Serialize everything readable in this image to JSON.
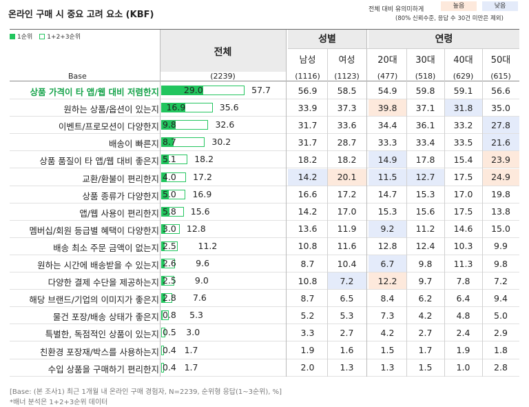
{
  "title": "온라인 구매 시 중요 고려 요소 (KBF)",
  "significance": {
    "label": "전체 대비 유의미하게",
    "high": "높음",
    "low": "낮음",
    "note": "(80% 신뢰수준, 응답 수 30건 미만은 제외)",
    "colors": {
      "high": "#fde9dc",
      "low": "#e4ebfa"
    }
  },
  "legend": {
    "rank1": "1순위",
    "rank123": "1+2+3순위"
  },
  "headers": {
    "total": "전체",
    "gender": "성별",
    "age": "연령",
    "columns": [
      "남성",
      "여성",
      "20대",
      "30대",
      "40대",
      "50대"
    ]
  },
  "base": {
    "label": "Base",
    "total": "(2239)",
    "cols": [
      "(1116)",
      "(1123)",
      "(477)",
      "(518)",
      "(629)",
      "(615)"
    ]
  },
  "chart_data": {
    "type": "bar",
    "title": "온라인 구매 시 중요 고려 요소 (KBF)",
    "series": [
      {
        "name": "1순위"
      },
      {
        "name": "1+2+3순위"
      }
    ],
    "rows": [
      {
        "label": "상품 가격이 타 앱/웹 대비 저렴한지",
        "rank1": 29.0,
        "rank123": 57.7,
        "cols": [
          56.9,
          58.5,
          54.9,
          59.8,
          59.1,
          56.6
        ],
        "sig": [
          "",
          "",
          "",
          "",
          "",
          ""
        ],
        "highlight": true
      },
      {
        "label": "원하는 상품/옵션이 있는지",
        "rank1": 16.9,
        "rank123": 35.6,
        "cols": [
          33.9,
          37.3,
          39.8,
          37.1,
          31.8,
          35.0
        ],
        "sig": [
          "",
          "",
          "hi",
          "",
          "lo",
          ""
        ]
      },
      {
        "label": "이벤트/프로모션이 다양한지",
        "rank1": 9.8,
        "rank123": 32.6,
        "cols": [
          31.7,
          33.6,
          34.4,
          36.1,
          33.2,
          27.8
        ],
        "sig": [
          "",
          "",
          "",
          "",
          "",
          "lo"
        ]
      },
      {
        "label": "배송이 빠른지",
        "rank1": 8.7,
        "rank123": 30.2,
        "cols": [
          31.7,
          28.7,
          33.3,
          33.4,
          33.5,
          21.6
        ],
        "sig": [
          "",
          "",
          "",
          "",
          "",
          "lo"
        ]
      },
      {
        "label": "상품 품질이 타 앱/웹 대비 좋은지",
        "rank1": 5.1,
        "rank123": 18.2,
        "cols": [
          18.2,
          18.2,
          14.9,
          17.8,
          15.4,
          23.9
        ],
        "sig": [
          "",
          "",
          "lo",
          "",
          "",
          "hi"
        ]
      },
      {
        "label": "교환/환불이 편리한지",
        "rank1": 4.0,
        "rank123": 17.2,
        "cols": [
          14.2,
          20.1,
          11.5,
          12.7,
          17.5,
          24.9
        ],
        "sig": [
          "lo",
          "hi",
          "lo",
          "lo",
          "",
          "hi"
        ]
      },
      {
        "label": "상품 종류가 다양한지",
        "rank1": 5.0,
        "rank123": 16.9,
        "cols": [
          16.6,
          17.2,
          14.7,
          15.3,
          17.0,
          19.8
        ],
        "sig": [
          "",
          "",
          "",
          "",
          "",
          ""
        ]
      },
      {
        "label": "앱/웹 사용이 편리한지",
        "rank1": 5.8,
        "rank123": 15.6,
        "cols": [
          14.2,
          17.0,
          15.3,
          15.6,
          17.5,
          13.8
        ],
        "sig": [
          "",
          "",
          "",
          "",
          "",
          ""
        ]
      },
      {
        "label": "멤버십/회원 등급별 혜택이 다양한지",
        "rank1": 3.0,
        "rank123": 12.8,
        "cols": [
          13.6,
          11.9,
          9.2,
          11.2,
          14.6,
          15.0
        ],
        "sig": [
          "",
          "",
          "lo",
          "",
          "",
          ""
        ]
      },
      {
        "label": "배송 최소 주문 금액이 없는지",
        "rank1": 2.5,
        "rank123": 11.2,
        "cols": [
          10.8,
          11.6,
          12.8,
          12.4,
          10.3,
          9.9
        ],
        "sig": [
          "",
          "",
          "",
          "",
          "",
          ""
        ]
      },
      {
        "label": "원하는 시간에 배송받을 수 있는지",
        "rank1": 2.6,
        "rank123": 9.6,
        "cols": [
          8.7,
          10.4,
          6.7,
          9.8,
          11.3,
          9.8
        ],
        "sig": [
          "",
          "",
          "lo",
          "",
          "",
          ""
        ]
      },
      {
        "label": "다양한 결제 수단을 제공하는지",
        "rank1": 2.5,
        "rank123": 9.0,
        "cols": [
          10.8,
          7.2,
          12.2,
          9.7,
          7.8,
          7.2
        ],
        "sig": [
          "",
          "lo",
          "hi",
          "",
          "",
          ""
        ]
      },
      {
        "label": "해당 브랜드/기업의 이미지가 좋은지",
        "rank1": 2.8,
        "rank123": 7.6,
        "cols": [
          8.7,
          6.5,
          8.4,
          6.2,
          6.4,
          9.4
        ],
        "sig": [
          "",
          "",
          "",
          "",
          "",
          ""
        ]
      },
      {
        "label": "물건 포장/배송 상태가 좋은지",
        "rank1": 0.8,
        "rank123": 5.3,
        "cols": [
          5.2,
          5.3,
          7.3,
          4.2,
          4.8,
          5.0
        ],
        "sig": [
          "",
          "",
          "",
          "",
          "",
          ""
        ]
      },
      {
        "label": "특별한, 독점적인 상품이 있는지",
        "rank1": 0.5,
        "rank123": 3.0,
        "cols": [
          3.3,
          2.7,
          4.2,
          2.7,
          2.4,
          2.9
        ],
        "sig": [
          "",
          "",
          "",
          "",
          "",
          ""
        ]
      },
      {
        "label": "친환경 포장재/박스를 사용하는지",
        "rank1": 0.4,
        "rank123": 1.7,
        "cols": [
          1.9,
          1.6,
          1.5,
          1.7,
          1.9,
          1.8
        ],
        "sig": [
          "",
          "",
          "",
          "",
          "",
          ""
        ]
      },
      {
        "label": "수입 상품을 구매하기 편리한지",
        "rank1": 0.4,
        "rank123": 1.7,
        "cols": [
          2.0,
          1.3,
          1.3,
          1.5,
          1.0,
          2.8
        ],
        "sig": [
          "",
          "",
          "",
          "",
          "",
          ""
        ]
      }
    ]
  },
  "footnotes": {
    "line1": "[Base: (본 조사1) 최근 1개월 내 온라인 구매 경험자, N=2239, 순위형 응답(1~3순위), %]",
    "line2": "*배너 분석은 1+2+3순위 데이터"
  }
}
